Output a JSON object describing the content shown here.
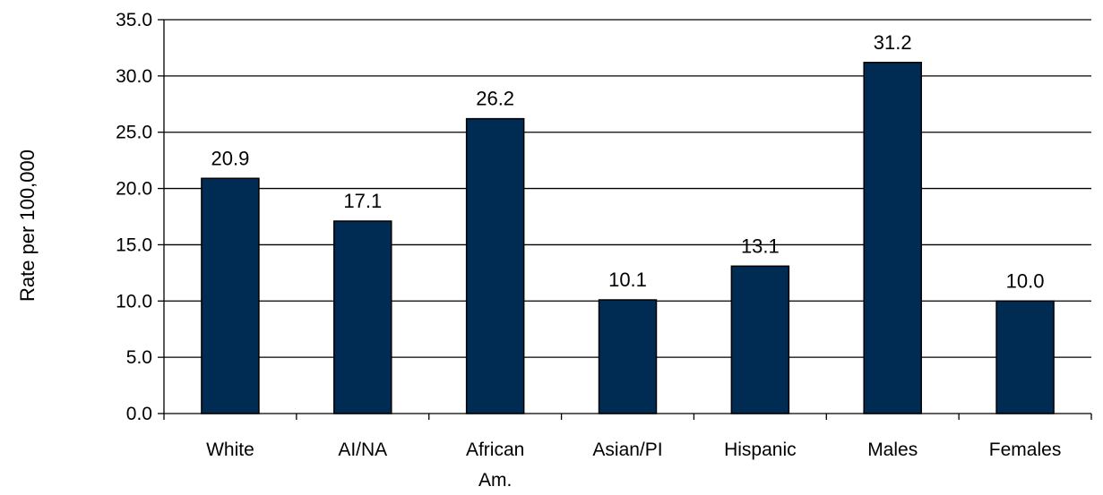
{
  "chart_data": {
    "type": "bar",
    "title": "",
    "xlabel": "",
    "ylabel": "Rate per 100,000",
    "categories": [
      [
        "White"
      ],
      [
        "AI/NA"
      ],
      [
        "African",
        "Am."
      ],
      [
        "Asian/PI"
      ],
      [
        "Hispanic"
      ],
      [
        "Males"
      ],
      [
        "Females"
      ]
    ],
    "values": [
      20.9,
      17.1,
      26.2,
      10.1,
      13.1,
      31.2,
      10.0
    ],
    "value_labels": [
      "20.9",
      "17.1",
      "26.2",
      "10.1",
      "13.1",
      "31.2",
      "10.0"
    ],
    "ylim": [
      0,
      35
    ],
    "yticks": [
      0,
      5,
      10,
      15,
      20,
      25,
      30,
      35
    ],
    "ytick_labels": [
      "0.0",
      "5.0",
      "10.0",
      "15.0",
      "20.0",
      "25.0",
      "30.0",
      "35.0"
    ],
    "grid": true,
    "legend": "none",
    "colors": {
      "bar_fill": "#002b52",
      "bar_stroke": "#000000",
      "grid": "#000000",
      "axis": "#000000"
    }
  }
}
